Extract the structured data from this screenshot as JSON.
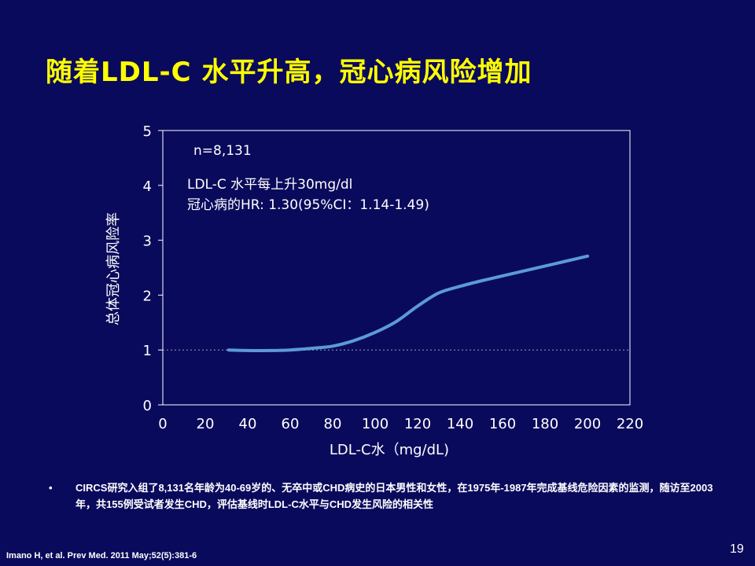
{
  "slide": {
    "title": "随着LDL-C 水平升高，冠心病风险增加",
    "bullet_symbol": "•",
    "bullet": "CIRCS研究入组了8,131名年龄为40-69岁的、无卒中或CHD病史的日本男性和女性，在1975年-1987年完成基线危险因素的监测，随访至2003年，共155例受试者发生CHD，评估基线时LDL-C水平与CHD发生风险的相关性",
    "citation": "Imano H, et al. Prev Med. 2011 May;52(5):381-6",
    "page_number": "19"
  },
  "chart_data": {
    "type": "line",
    "xlabel": "LDL-C水（mg/dL)",
    "ylabel": "总体冠心病风险率",
    "xlim": [
      0,
      220
    ],
    "ylim": [
      0,
      5
    ],
    "x_ticks": [
      0,
      20,
      40,
      60,
      80,
      100,
      120,
      140,
      160,
      180,
      200,
      220
    ],
    "y_ticks": [
      0,
      1,
      2,
      3,
      4,
      5
    ],
    "reference_line": {
      "y": 1,
      "style": "dotted"
    },
    "annotations": {
      "n": "n=8,131",
      "line1": "LDL-C 水平每上升30mg/dl",
      "line2": "冠心病的HR: 1.30(95%CI：1.14-1.49)"
    },
    "colors": {
      "line": "#5b9bd5",
      "axis": "#ffffff",
      "text": "#ffffff",
      "reference": "#9b9bb5"
    },
    "series": [
      {
        "x": [
          31,
          40,
          50,
          60,
          70,
          80,
          90,
          100,
          110,
          120,
          130,
          140,
          150,
          160,
          170,
          180,
          190,
          200
        ],
        "y": [
          1.0,
          0.99,
          0.99,
          1.0,
          1.03,
          1.07,
          1.17,
          1.32,
          1.52,
          1.8,
          2.04,
          2.16,
          2.26,
          2.35,
          2.44,
          2.53,
          2.62,
          2.71
        ]
      }
    ]
  }
}
